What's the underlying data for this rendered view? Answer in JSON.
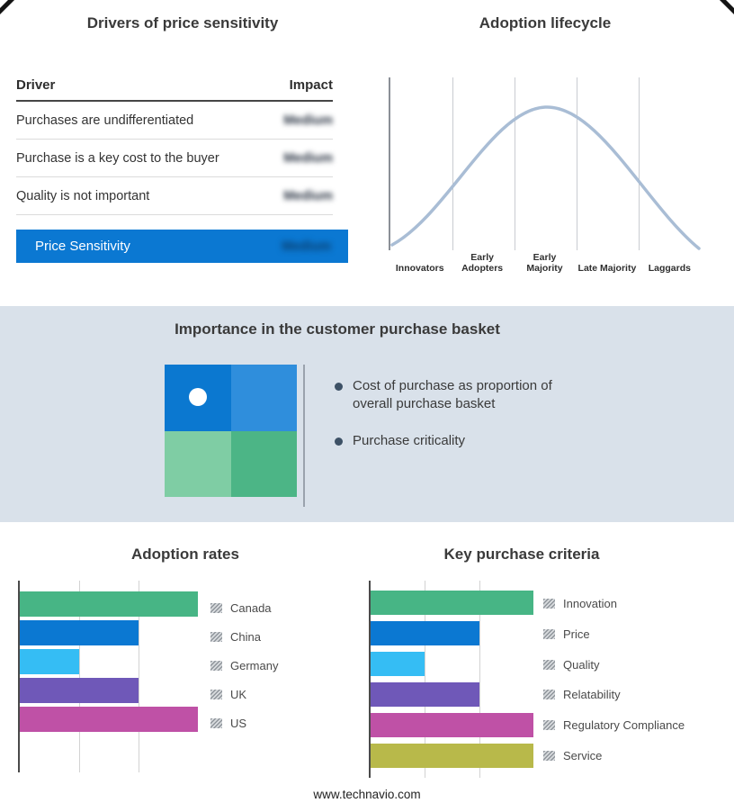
{
  "page": {
    "footer_url": "www.technavio.com"
  },
  "drivers": {
    "title": "Drivers of price sensitivity",
    "header": {
      "driver": "Driver",
      "impact": "Impact"
    },
    "rows": [
      {
        "driver": "Purchases are undifferentiated",
        "impact": "Medium"
      },
      {
        "driver": "Purchase is a key cost to the buyer",
        "impact": "Medium"
      },
      {
        "driver": "Quality is not important",
        "impact": "Medium"
      }
    ],
    "summary": {
      "label": "Price Sensitivity",
      "value": "Medium",
      "bar_color": "#0b78d2"
    }
  },
  "lifecycle": {
    "title": "Adoption lifecycle",
    "stages": [
      "Innovators",
      "Early Adopters",
      "Early Majority",
      "Late Majority",
      "Laggards"
    ],
    "curve_color": "#a9bdd5"
  },
  "basket": {
    "title": "Importance in the customer purchase basket",
    "bullets": [
      "Cost of purchase as proportion of overall purchase basket",
      "Purchase criticality"
    ],
    "quadrant_colors": {
      "top_left": "#0b78d0",
      "top_right": "#2f8edc",
      "bottom_left": "#7fcda4",
      "bottom_right": "#4cb586"
    }
  },
  "chart_data": [
    {
      "type": "area",
      "title": "Adoption lifecycle",
      "categories": [
        "Innovators",
        "Early Adopters",
        "Early Majority",
        "Late Majority",
        "Laggards"
      ],
      "description": "bell-shaped adoption curve peaking at Early Majority",
      "curve_color": "#a9bdd5"
    },
    {
      "type": "bar",
      "title": "Adoption rates",
      "orientation": "horizontal",
      "categories": [
        "Canada",
        "China",
        "Germany",
        "UK",
        "US"
      ],
      "values": [
        3,
        2,
        1,
        2,
        3
      ],
      "xlim": [
        0,
        3
      ],
      "grid": true,
      "legend_position": "right",
      "colors": [
        "#47b585",
        "#0b78d2",
        "#35bdf4",
        "#6f58b8",
        "#bf51a6"
      ]
    },
    {
      "type": "bar",
      "title": "Key purchase criteria",
      "orientation": "horizontal",
      "categories": [
        "Innovation",
        "Price",
        "Quality",
        "Relatability",
        "Regulatory Compliance",
        "Service"
      ],
      "values": [
        3,
        2,
        1,
        2,
        3,
        3
      ],
      "xlim": [
        0,
        3
      ],
      "grid": true,
      "legend_position": "right",
      "colors": [
        "#47b585",
        "#0b78d2",
        "#35bdf4",
        "#6f58b8",
        "#bf51a6",
        "#b8b94a"
      ]
    }
  ]
}
